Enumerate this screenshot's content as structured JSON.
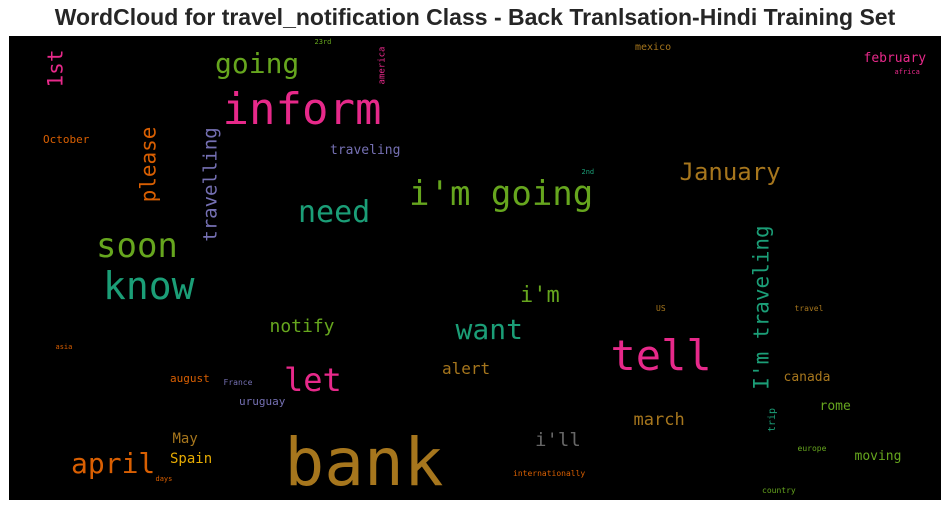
{
  "chart_data": {
    "type": "wordcloud",
    "title": "WordCloud for travel_notification Class - Back Tranlsation-Hindi Training Set",
    "words": [
      {
        "text": "bank",
        "color": "#a6761d"
      },
      {
        "text": "inform",
        "color": "#e7298a"
      },
      {
        "text": "tell",
        "color": "#e7298a"
      },
      {
        "text": "know",
        "color": "#1b9e77"
      },
      {
        "text": "i'm going",
        "color": "#66a61e"
      },
      {
        "text": "soon",
        "color": "#66a61e"
      },
      {
        "text": "need",
        "color": "#1b9e77"
      },
      {
        "text": "let",
        "color": "#e7298a"
      },
      {
        "text": "want",
        "color": "#1b9e77"
      },
      {
        "text": "april",
        "color": "#d95f02"
      },
      {
        "text": "January",
        "color": "#a6761d"
      },
      {
        "text": "going",
        "color": "#66a61e"
      },
      {
        "text": "I'm traveling",
        "color": "#1b9e77"
      },
      {
        "text": "i'm",
        "color": "#66a61e"
      },
      {
        "text": "please",
        "color": "#d95f02"
      },
      {
        "text": "travelling",
        "color": "#7570b3"
      },
      {
        "text": "1st",
        "color": "#e7298a"
      },
      {
        "text": "notify",
        "color": "#66a61e"
      },
      {
        "text": "i'll",
        "color": "#666666"
      },
      {
        "text": "march",
        "color": "#a6761d"
      },
      {
        "text": "alert",
        "color": "#a6761d"
      },
      {
        "text": "May",
        "color": "#a6761d"
      },
      {
        "text": "Spain",
        "color": "#e6ab02"
      },
      {
        "text": "february",
        "color": "#e7298a"
      },
      {
        "text": "traveling",
        "color": "#7570b3"
      },
      {
        "text": "canada",
        "color": "#a6761d"
      },
      {
        "text": "rome",
        "color": "#66a61e"
      },
      {
        "text": "moving",
        "color": "#66a61e"
      },
      {
        "text": "uruguay",
        "color": "#7570b3"
      },
      {
        "text": "august",
        "color": "#d95f02"
      },
      {
        "text": "October",
        "color": "#d95f02"
      },
      {
        "text": "mexico",
        "color": "#a6761d"
      },
      {
        "text": "trip",
        "color": "#1b9e77"
      },
      {
        "text": "america",
        "color": "#e7298a"
      },
      {
        "text": "France",
        "color": "#7570b3"
      },
      {
        "text": "US",
        "color": "#a6761d"
      },
      {
        "text": "travel",
        "color": "#a6761d"
      },
      {
        "text": "europe",
        "color": "#66a61e"
      },
      {
        "text": "country",
        "color": "#66a61e"
      },
      {
        "text": "internationally",
        "color": "#d95f02"
      },
      {
        "text": "days",
        "color": "#d95f02"
      },
      {
        "text": "asia",
        "color": "#d95f02"
      },
      {
        "text": "africa",
        "color": "#e7298a"
      },
      {
        "text": "2nd",
        "color": "#1b9e77"
      },
      {
        "text": "23rd",
        "color": "#66a61e"
      }
    ]
  }
}
